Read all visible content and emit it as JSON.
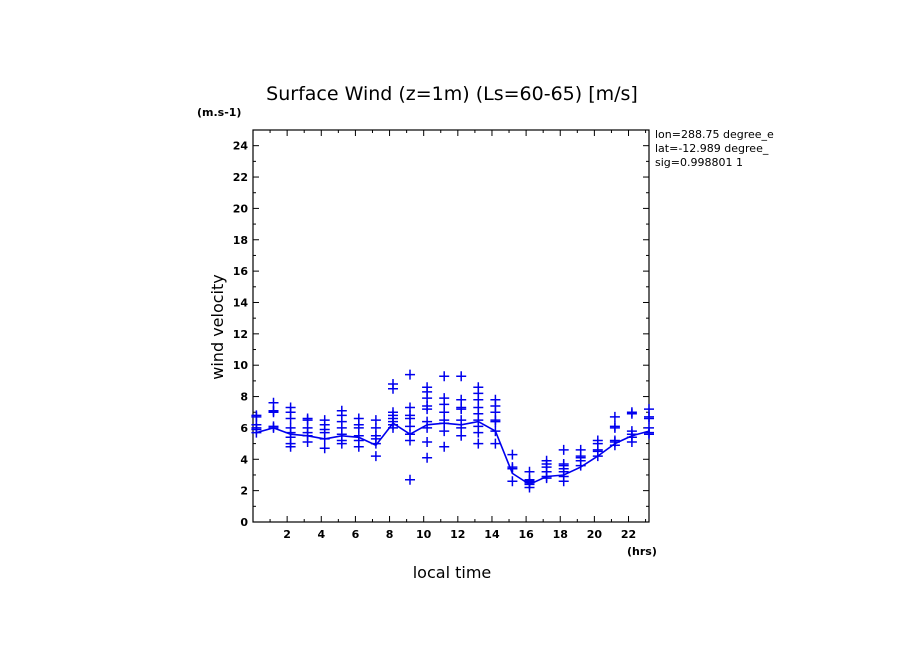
{
  "chart_data": {
    "type": "scatter",
    "title": "Surface Wind (z=1m) (Ls=60-65) [m/s]",
    "xlabel": "local time",
    "ylabel": "wind velocity",
    "x_unit": "(hrs)",
    "y_unit": "(m.s-1)",
    "xlim": [
      0,
      23.2
    ],
    "ylim": [
      0,
      25
    ],
    "xticks": [
      2,
      4,
      6,
      8,
      10,
      12,
      14,
      16,
      18,
      20,
      22
    ],
    "yticks": [
      0,
      2,
      4,
      6,
      8,
      10,
      12,
      14,
      16,
      18,
      20,
      22,
      24
    ],
    "grid": false,
    "info": [
      "lon=288.75 degree_e",
      "lat=-12.989 degree_",
      "sig=0.998801 1"
    ],
    "colors": {
      "series": "#0000ee",
      "axes": "#000000"
    },
    "mean_line": {
      "x": [
        0.2,
        1.2,
        2.2,
        3.2,
        4.2,
        5.2,
        6.2,
        7.2,
        8.2,
        9.2,
        10.2,
        11.2,
        12.2,
        13.2,
        14.2,
        15.2,
        16.2,
        17.2,
        18.2,
        19.2,
        20.2,
        21.2,
        22.2,
        23.2
      ],
      "y": [
        5.7,
        6.0,
        5.6,
        5.5,
        5.3,
        5.5,
        5.4,
        4.9,
        6.3,
        5.6,
        6.2,
        6.3,
        6.2,
        6.4,
        5.8,
        3.1,
        2.4,
        2.9,
        3.0,
        3.5,
        4.2,
        5.0,
        5.5,
        5.8
      ]
    },
    "points": {
      "x": [
        0.2,
        1.2,
        2.2,
        3.2,
        4.2,
        5.2,
        6.2,
        7.2,
        8.2,
        9.2,
        10.2,
        11.2,
        12.2,
        13.2,
        14.2,
        15.2,
        16.2,
        17.2,
        18.2,
        19.2,
        20.2,
        21.2,
        22.2,
        23.2
      ],
      "y": [
        [
          6.8,
          6.7,
          6.2,
          6.0,
          5.9,
          5.7
        ],
        [
          7.6,
          7.1,
          7.0,
          6.1,
          6.0
        ],
        [
          7.3,
          7.0,
          6.6,
          6.0,
          5.7,
          5.4,
          5.0,
          4.8
        ],
        [
          6.6,
          6.5,
          6.0,
          5.7,
          5.5,
          5.1
        ],
        [
          6.5,
          6.2,
          5.9,
          5.7,
          5.3,
          4.7
        ],
        [
          7.1,
          6.8,
          6.4,
          6.0,
          5.6,
          5.2,
          5.0
        ],
        [
          6.6,
          6.2,
          6.0,
          5.5,
          5.2,
          4.8
        ],
        [
          6.5,
          6.0,
          5.5,
          5.3,
          5.0,
          4.2
        ],
        [
          8.8,
          8.5,
          7.0,
          6.8,
          6.6,
          6.4,
          6.2,
          6.0
        ],
        [
          9.4,
          7.3,
          6.8,
          6.6,
          6.1,
          5.6,
          5.2,
          2.7
        ],
        [
          8.6,
          8.3,
          7.9,
          7.4,
          7.2,
          6.4,
          6.0,
          5.1,
          4.1
        ],
        [
          9.3,
          7.9,
          7.5,
          7.0,
          6.5,
          6.3,
          5.8,
          4.8
        ],
        [
          9.3,
          7.8,
          7.3,
          7.2,
          6.5,
          6.0,
          5.5
        ],
        [
          8.6,
          8.2,
          7.8,
          7.3,
          6.9,
          6.5,
          6.1,
          5.7,
          5.0
        ],
        [
          7.8,
          7.4,
          7.0,
          6.5,
          6.4,
          5.8,
          5.0
        ],
        [
          4.3,
          3.5,
          3.4,
          2.6
        ],
        [
          3.2,
          2.7,
          2.6,
          2.5,
          2.4,
          2.2
        ],
        [
          3.9,
          3.7,
          3.5,
          3.2,
          2.9,
          2.8
        ],
        [
          4.6,
          3.7,
          3.6,
          3.4,
          3.2,
          2.9,
          2.6
        ],
        [
          4.6,
          4.2,
          4.1,
          3.9,
          3.6
        ],
        [
          5.2,
          5.0,
          4.6,
          4.5,
          4.2
        ],
        [
          6.7,
          6.1,
          6.0,
          5.2,
          5.1,
          4.9
        ],
        [
          7.0,
          6.9,
          5.8,
          5.6,
          5.4,
          5.1
        ],
        [
          7.2,
          6.7,
          6.6,
          6.0,
          5.7,
          5.6
        ]
      ]
    }
  }
}
